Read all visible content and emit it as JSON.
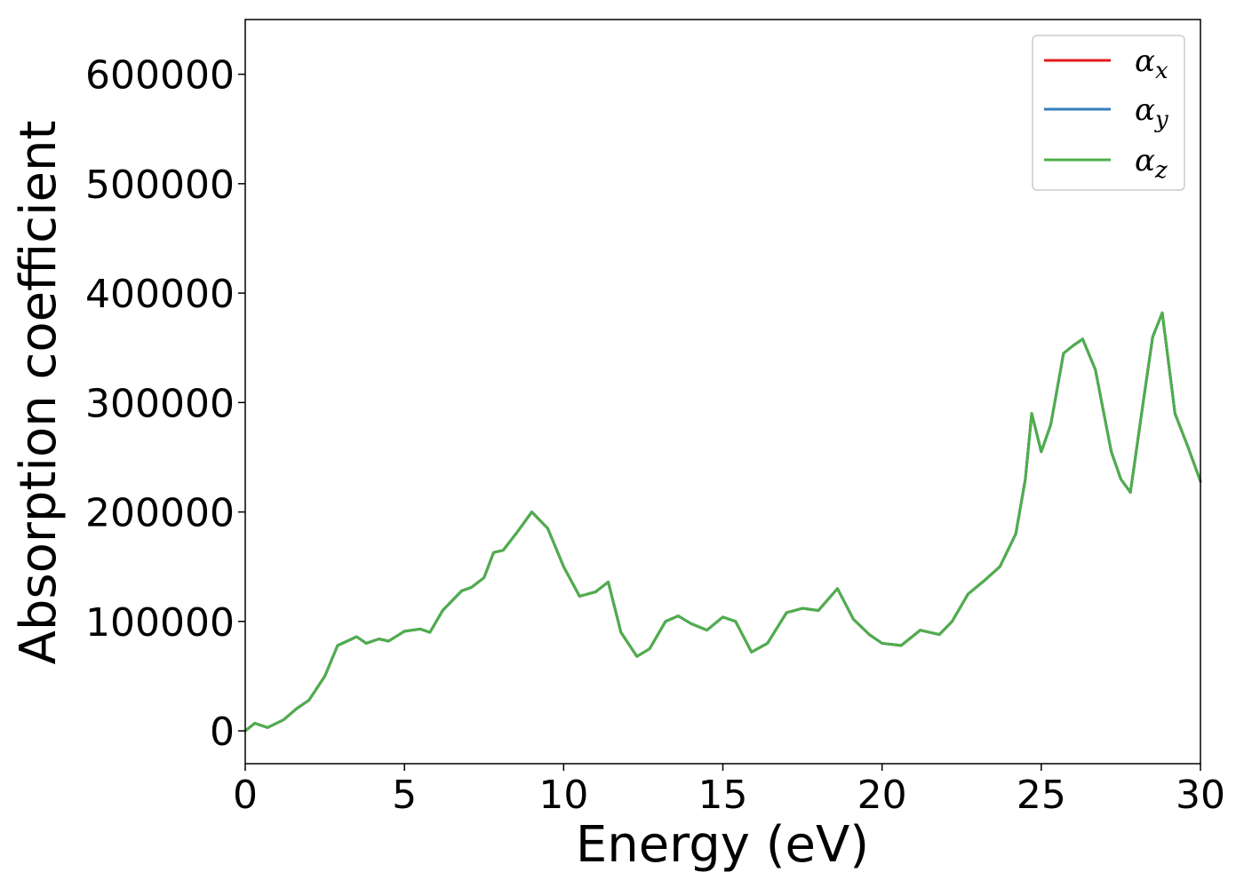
{
  "chart_data": {
    "type": "line",
    "title": "",
    "xlabel": "Energy (eV)",
    "ylabel": "Absorption coefficient",
    "xlim": [
      0,
      30
    ],
    "ylim": [
      -30000,
      650000
    ],
    "xticks": [
      0,
      5,
      10,
      15,
      20,
      25,
      30
    ],
    "yticks": [
      0,
      100000,
      200000,
      300000,
      400000,
      500000,
      600000
    ],
    "xtick_labels": [
      "0",
      "5",
      "10",
      "15",
      "20",
      "25",
      "30"
    ],
    "ytick_labels": [
      "0",
      "100000",
      "200000",
      "300000",
      "400000",
      "500000",
      "600000"
    ],
    "grid": false,
    "legend_position": "top-right",
    "colors": {
      "alpha_x": "#e41a1c",
      "alpha_y": "#377eb8",
      "alpha_z": "#4daf4a"
    },
    "x": [
      0,
      0.3,
      0.7,
      1.2,
      1.6,
      2.0,
      2.5,
      2.9,
      3.2,
      3.5,
      3.8,
      4.2,
      4.5,
      5.0,
      5.5,
      5.8,
      6.2,
      6.8,
      7.1,
      7.5,
      7.8,
      8.1,
      8.5,
      9.0,
      9.5,
      10.0,
      10.5,
      11.0,
      11.4,
      11.8,
      12.3,
      12.7,
      13.2,
      13.6,
      14.0,
      14.5,
      15.0,
      15.4,
      15.9,
      16.4,
      17.0,
      17.5,
      18.0,
      18.6,
      19.1,
      19.6,
      20.0,
      20.6,
      21.2,
      21.8,
      22.2,
      22.7,
      23.2,
      23.7,
      24.2,
      24.5,
      24.7,
      25.0,
      25.3,
      25.7,
      26.0,
      26.3,
      26.7,
      27.2,
      27.5,
      27.8,
      28.2,
      28.5,
      28.8,
      29.2,
      29.6,
      30.0
    ],
    "series": [
      {
        "name": "α_x",
        "values": [
          0,
          7000,
          3000,
          10000,
          20000,
          28000,
          50000,
          78000,
          82000,
          86000,
          80000,
          84000,
          82000,
          91000,
          93000,
          90000,
          110000,
          128000,
          131000,
          140000,
          163000,
          165000,
          180000,
          200000,
          185000,
          150000,
          123000,
          127000,
          136000,
          90000,
          68000,
          75000,
          100000,
          105000,
          98000,
          92000,
          104000,
          100000,
          72000,
          80000,
          108000,
          112000,
          110000,
          130000,
          102000,
          88000,
          80000,
          78000,
          92000,
          88000,
          100000,
          125000,
          137000,
          150000,
          180000,
          230000,
          290000,
          255000,
          280000,
          345000,
          352000,
          358000,
          330000,
          255000,
          230000,
          218000,
          300000,
          360000,
          382000,
          290000,
          260000,
          228000
        ]
      },
      {
        "name": "α_y",
        "values": [
          0,
          7000,
          3000,
          10000,
          20000,
          28000,
          50000,
          78000,
          82000,
          86000,
          80000,
          84000,
          82000,
          91000,
          93000,
          90000,
          110000,
          128000,
          131000,
          140000,
          163000,
          165000,
          180000,
          200000,
          185000,
          150000,
          123000,
          127000,
          136000,
          90000,
          68000,
          75000,
          100000,
          105000,
          98000,
          92000,
          104000,
          100000,
          72000,
          80000,
          108000,
          112000,
          110000,
          130000,
          102000,
          88000,
          80000,
          78000,
          92000,
          88000,
          100000,
          125000,
          137000,
          150000,
          180000,
          230000,
          290000,
          255000,
          280000,
          345000,
          352000,
          358000,
          330000,
          255000,
          230000,
          218000,
          300000,
          360000,
          382000,
          290000,
          260000,
          228000
        ]
      },
      {
        "name": "α_z",
        "values": [
          0,
          7000,
          3000,
          10000,
          20000,
          28000,
          50000,
          78000,
          82000,
          86000,
          80000,
          84000,
          82000,
          91000,
          93000,
          90000,
          110000,
          128000,
          131000,
          140000,
          163000,
          165000,
          180000,
          200000,
          185000,
          150000,
          123000,
          127000,
          136000,
          90000,
          68000,
          75000,
          100000,
          105000,
          98000,
          92000,
          104000,
          100000,
          72000,
          80000,
          108000,
          112000,
          110000,
          130000,
          102000,
          88000,
          80000,
          78000,
          92000,
          88000,
          100000,
          125000,
          137000,
          150000,
          180000,
          230000,
          290000,
          255000,
          280000,
          345000,
          352000,
          358000,
          330000,
          255000,
          230000,
          218000,
          300000,
          360000,
          382000,
          290000,
          260000,
          228000
        ]
      }
    ]
  }
}
